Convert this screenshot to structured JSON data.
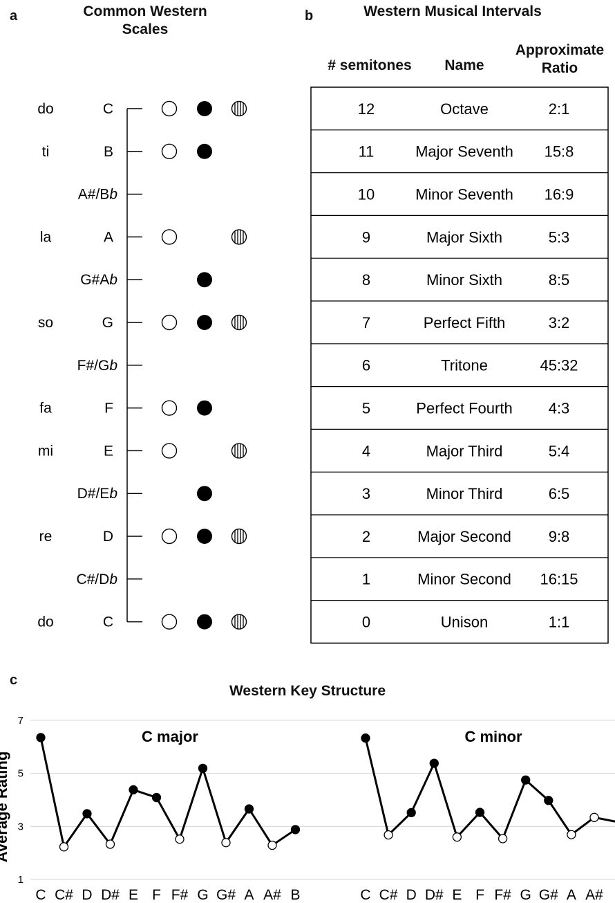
{
  "panels": {
    "a": {
      "letter": "a",
      "title_line1": "Common Western",
      "title_line2": "Scales",
      "rows": [
        {
          "solfege": "do",
          "note": "C",
          "open": true,
          "filled": true,
          "hatched": true
        },
        {
          "solfege": "ti",
          "note": "B",
          "open": true,
          "filled": true,
          "hatched": false
        },
        {
          "solfege": "",
          "note": "A#/Bb",
          "note_base": "A#/B",
          "note_italic": "b",
          "open": false,
          "filled": false,
          "hatched": false
        },
        {
          "solfege": "la",
          "note": "A",
          "open": true,
          "filled": false,
          "hatched": true
        },
        {
          "solfege": "",
          "note": "G#Ab",
          "note_base": "G#A",
          "note_italic": "b",
          "open": false,
          "filled": true,
          "hatched": false
        },
        {
          "solfege": "so",
          "note": "G",
          "open": true,
          "filled": true,
          "hatched": true
        },
        {
          "solfege": "",
          "note": "F#/Gb",
          "note_base": "F#/G",
          "note_italic": "b",
          "open": false,
          "filled": false,
          "hatched": false
        },
        {
          "solfege": "fa",
          "note": "F",
          "open": true,
          "filled": true,
          "hatched": false
        },
        {
          "solfege": "mi",
          "note": "E",
          "open": true,
          "filled": false,
          "hatched": true
        },
        {
          "solfege": "",
          "note": "D#/Eb",
          "note_base": "D#/E",
          "note_italic": "b",
          "open": false,
          "filled": true,
          "hatched": false
        },
        {
          "solfege": "re",
          "note": "D",
          "open": true,
          "filled": true,
          "hatched": true
        },
        {
          "solfege": "",
          "note": "C#/Db",
          "note_base": "C#/D",
          "note_italic": "b",
          "open": false,
          "filled": false,
          "hatched": false
        },
        {
          "solfege": "do",
          "note": "C",
          "open": true,
          "filled": true,
          "hatched": true
        }
      ]
    },
    "b": {
      "letter": "b",
      "title": "Western Musical Intervals",
      "col_semitones": "# semitones",
      "col_name": "Name",
      "col_ratio_line1": "Approximate",
      "col_ratio_line2": "Ratio",
      "rows": [
        {
          "semitones": "12",
          "name": "Octave",
          "ratio": "2:1"
        },
        {
          "semitones": "11",
          "name": "Major Seventh",
          "ratio": "15:8"
        },
        {
          "semitones": "10",
          "name": "Minor Seventh",
          "ratio": "16:9"
        },
        {
          "semitones": "9",
          "name": "Major Sixth",
          "ratio": "5:3"
        },
        {
          "semitones": "8",
          "name": "Minor Sixth",
          "ratio": "8:5"
        },
        {
          "semitones": "7",
          "name": "Perfect Fifth",
          "ratio": "3:2"
        },
        {
          "semitones": "6",
          "name": "Tritone",
          "ratio": "45:32"
        },
        {
          "semitones": "5",
          "name": "Perfect Fourth",
          "ratio": "4:3"
        },
        {
          "semitones": "4",
          "name": "Major Third",
          "ratio": "5:4"
        },
        {
          "semitones": "3",
          "name": "Minor Third",
          "ratio": "6:5"
        },
        {
          "semitones": "2",
          "name": "Major Second",
          "ratio": "9:8"
        },
        {
          "semitones": "1",
          "name": "Minor Second",
          "ratio": "16:15"
        },
        {
          "semitones": "0",
          "name": "Unison",
          "ratio": "1:1"
        }
      ]
    },
    "c": {
      "letter": "c",
      "title": "Western Key Structure",
      "ylabel": "Average Rating"
    }
  },
  "chart_data": [
    {
      "type": "line",
      "title": "C major",
      "xlabel": "",
      "ylabel": "Average Rating",
      "ylim": [
        1,
        7
      ],
      "yticks": [
        "1",
        "3",
        "5",
        "7"
      ],
      "grid": true,
      "categories": [
        "C",
        "C#",
        "D",
        "D#",
        "E",
        "F",
        "F#",
        "G",
        "G#",
        "A",
        "A#",
        "B"
      ],
      "values": [
        6.35,
        2.23,
        3.48,
        2.33,
        4.38,
        4.09,
        2.52,
        5.19,
        2.39,
        3.66,
        2.29,
        2.88
      ],
      "in_key": [
        true,
        false,
        true,
        false,
        true,
        true,
        false,
        true,
        false,
        true,
        false,
        true
      ]
    },
    {
      "type": "line",
      "title": "C minor",
      "xlabel": "",
      "ylabel": "Average Rating",
      "ylim": [
        1,
        7
      ],
      "yticks": [
        "1",
        "3",
        "5",
        "7"
      ],
      "grid": true,
      "categories": [
        "C",
        "C#",
        "D",
        "D#",
        "E",
        "F",
        "F#",
        "G",
        "G#",
        "A",
        "A#"
      ],
      "values": [
        6.33,
        2.68,
        3.52,
        5.38,
        2.6,
        3.53,
        2.54,
        4.75,
        3.98,
        2.69,
        3.34
      ],
      "in_key": [
        true,
        false,
        true,
        true,
        false,
        true,
        false,
        true,
        true,
        false,
        false
      ],
      "trailing_value": 3.17
    }
  ]
}
